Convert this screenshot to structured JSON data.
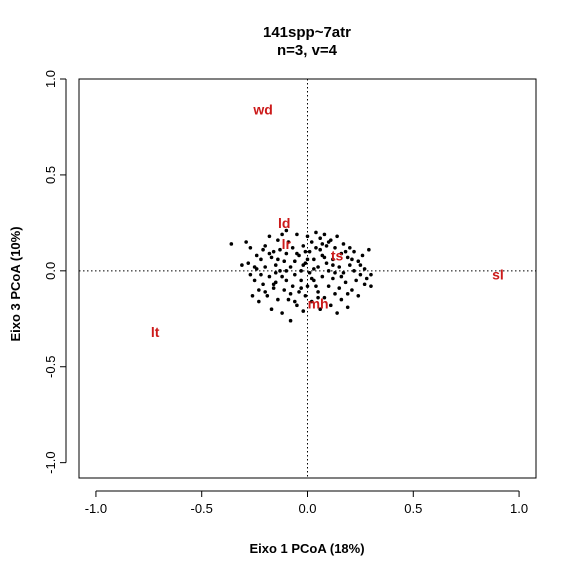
{
  "chart_data": {
    "type": "scatter",
    "title": "141spp~7atr",
    "subtitle": "n=3, v=4",
    "xlabel": "Eixo 1 PCoA (18%)",
    "ylabel": "Eixo 3 PCoA (10%)",
    "xlim": [
      -1.08,
      1.08
    ],
    "ylim": [
      -1.08,
      1.0
    ],
    "xticks": [
      "-1.0",
      "-0.5",
      "0.0",
      "0.5",
      "1.0"
    ],
    "yticks": [
      "-1.0",
      "-0.5",
      "0.0",
      "0.5",
      "1.0"
    ],
    "grid": false,
    "reference_lines": {
      "x": 0,
      "y": 0,
      "style": "dotted"
    },
    "label_color": "#cc1a1a",
    "point_color": "#000000",
    "variables": [
      {
        "label": "wd",
        "x": -0.21,
        "y": 0.84
      },
      {
        "label": "ld",
        "x": -0.11,
        "y": 0.25
      },
      {
        "label": "lr",
        "x": -0.1,
        "y": 0.14
      },
      {
        "label": "ts",
        "x": 0.14,
        "y": 0.08
      },
      {
        "label": "sl",
        "x": 0.9,
        "y": -0.02
      },
      {
        "label": "mh",
        "x": 0.05,
        "y": -0.17
      },
      {
        "label": "lt",
        "x": -0.72,
        "y": -0.32
      }
    ],
    "points": [
      [
        -0.36,
        0.14
      ],
      [
        -0.31,
        0.03
      ],
      [
        -0.29,
        0.15
      ],
      [
        -0.28,
        0.04
      ],
      [
        -0.27,
        0.12
      ],
      [
        -0.27,
        -0.02
      ],
      [
        -0.26,
        -0.13
      ],
      [
        -0.25,
        -0.05
      ],
      [
        -0.24,
        0.08
      ],
      [
        -0.24,
        0.01
      ],
      [
        -0.23,
        -0.1
      ],
      [
        -0.23,
        -0.16
      ],
      [
        -0.22,
        -0.02
      ],
      [
        -0.22,
        0.06
      ],
      [
        -0.21,
        -0.07
      ],
      [
        -0.2,
        0.13
      ],
      [
        -0.2,
        0.02
      ],
      [
        -0.19,
        -0.13
      ],
      [
        -0.18,
        0.18
      ],
      [
        -0.18,
        -0.03
      ],
      [
        -0.17,
        0.07
      ],
      [
        -0.17,
        -0.2
      ],
      [
        -0.16,
        0.1
      ],
      [
        -0.16,
        -0.09
      ],
      [
        -0.15,
        0.03
      ],
      [
        -0.15,
        -0.06
      ],
      [
        -0.14,
        0.16
      ],
      [
        -0.14,
        -0.15
      ],
      [
        -0.13,
        0.0
      ],
      [
        -0.13,
        0.11
      ],
      [
        -0.12,
        -0.03
      ],
      [
        -0.12,
        -0.22
      ],
      [
        -0.11,
        0.05
      ],
      [
        -0.11,
        -0.1
      ],
      [
        -0.1,
        0.21
      ],
      [
        -0.1,
        0.09
      ],
      [
        -0.1,
        -0.05
      ],
      [
        -0.09,
        -0.15
      ],
      [
        -0.09,
        0.15
      ],
      [
        -0.08,
        0.02
      ],
      [
        -0.08,
        -0.26
      ],
      [
        -0.07,
        -0.08
      ],
      [
        -0.07,
        0.12
      ],
      [
        -0.06,
        -0.02
      ],
      [
        -0.06,
        0.05
      ],
      [
        -0.05,
        -0.18
      ],
      [
        -0.05,
        0.19
      ],
      [
        -0.04,
        0.08
      ],
      [
        -0.04,
        -0.11
      ],
      [
        -0.03,
        0.0
      ],
      [
        -0.03,
        -0.05
      ],
      [
        -0.02,
        0.13
      ],
      [
        -0.02,
        -0.21
      ],
      [
        -0.01,
        0.04
      ],
      [
        -0.01,
        -0.13
      ],
      [
        0.0,
        0.18
      ],
      [
        0.0,
        -0.08
      ],
      [
        0.01,
        0.1
      ],
      [
        0.01,
        -0.01
      ],
      [
        0.02,
        0.15
      ],
      [
        0.02,
        -0.16
      ],
      [
        0.03,
        0.06
      ],
      [
        0.03,
        -0.05
      ],
      [
        0.04,
        0.2
      ],
      [
        0.04,
        0.12
      ],
      [
        0.05,
        -0.11
      ],
      [
        0.05,
        0.02
      ],
      [
        0.06,
        0.17
      ],
      [
        0.06,
        -0.2
      ],
      [
        0.07,
        0.08
      ],
      [
        0.07,
        -0.03
      ],
      [
        0.08,
        0.19
      ],
      [
        0.08,
        -0.14
      ],
      [
        0.09,
        0.04
      ],
      [
        0.09,
        0.13
      ],
      [
        0.1,
        -0.08
      ],
      [
        0.1,
        0.0
      ],
      [
        0.11,
        0.16
      ],
      [
        0.11,
        -0.18
      ],
      [
        0.12,
        0.06
      ],
      [
        0.12,
        -0.04
      ],
      [
        0.13,
        0.12
      ],
      [
        0.13,
        -0.12
      ],
      [
        0.14,
        0.18
      ],
      [
        0.14,
        -0.22
      ],
      [
        0.15,
        0.02
      ],
      [
        0.15,
        -0.09
      ],
      [
        0.16,
        0.09
      ],
      [
        0.16,
        -0.15
      ],
      [
        0.17,
        0.14
      ],
      [
        0.17,
        -0.01
      ],
      [
        0.18,
        -0.06
      ],
      [
        0.19,
        0.07
      ],
      [
        0.19,
        -0.19
      ],
      [
        0.2,
        0.03
      ],
      [
        0.2,
        0.12
      ],
      [
        0.21,
        -0.1
      ],
      [
        0.22,
        0.0
      ],
      [
        0.22,
        0.1
      ],
      [
        0.23,
        -0.05
      ],
      [
        0.24,
        0.05
      ],
      [
        0.24,
        -0.13
      ],
      [
        0.25,
        -0.02
      ],
      [
        0.26,
        0.08
      ],
      [
        0.27,
        -0.07
      ],
      [
        0.27,
        0.01
      ],
      [
        0.28,
        -0.04
      ],
      [
        0.29,
        0.11
      ],
      [
        0.3,
        -0.08
      ],
      [
        0.3,
        -0.02
      ],
      [
        -0.12,
        0.19
      ],
      [
        -0.2,
        -0.11
      ],
      [
        0.0,
        0.06
      ],
      [
        -0.05,
        0.09
      ],
      [
        0.04,
        -0.08
      ],
      [
        -0.15,
        -0.01
      ],
      [
        0.1,
        0.15
      ],
      [
        0.18,
        0.1
      ],
      [
        -0.08,
        -0.12
      ],
      [
        0.06,
        0.11
      ],
      [
        -0.02,
        0.03
      ],
      [
        0.12,
        0.03
      ],
      [
        -0.18,
        0.09
      ],
      [
        0.02,
        -0.04
      ],
      [
        0.16,
        -0.03
      ],
      [
        -0.25,
        0.02
      ],
      [
        -0.1,
        0.0
      ],
      [
        0.08,
        0.07
      ],
      [
        -0.06,
        -0.16
      ],
      [
        0.21,
        0.06
      ],
      [
        -0.14,
        0.06
      ],
      [
        0.13,
        -0.01
      ],
      [
        -0.03,
        -0.09
      ],
      [
        0.07,
        0.14
      ],
      [
        -0.21,
        0.11
      ],
      [
        0.25,
        0.03
      ],
      [
        -0.01,
        0.1
      ],
      [
        0.05,
        -0.14
      ],
      [
        -0.16,
        -0.07
      ],
      [
        0.19,
        -0.12
      ],
      [
        0.03,
        0.01
      ]
    ]
  }
}
